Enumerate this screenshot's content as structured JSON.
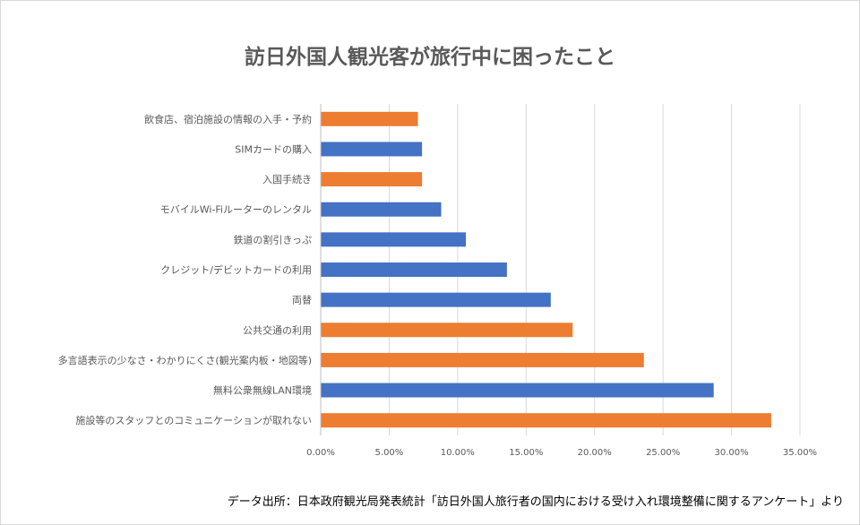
{
  "chart_data": {
    "type": "bar",
    "orientation": "horizontal",
    "title": "訪日外国人観光客が旅行中に困ったこと",
    "categories": [
      "飲食店、宿泊施設の情報の入手・予約",
      "SIMカードの購入",
      "入国手続き",
      "モバイルWi-Fiルーターのレンタル",
      "鉄道の割引きっぷ",
      "クレジット/デビットカードの利用",
      "両替",
      "公共交通の利用",
      "多言語表示の少なさ・わかりにくさ(観光案内板・地図等)",
      "無料公衆無線LAN環境",
      "施設等のスタッフとのコミュニケーションが取れない"
    ],
    "values": [
      7.1,
      7.4,
      7.4,
      8.8,
      10.6,
      13.6,
      16.8,
      18.4,
      23.6,
      28.7,
      32.9
    ],
    "bar_colors": [
      "#ed7d31",
      "#4472c4",
      "#ed7d31",
      "#4472c4",
      "#4472c4",
      "#4472c4",
      "#4472c4",
      "#ed7d31",
      "#ed7d31",
      "#4472c4",
      "#ed7d31"
    ],
    "xlim": [
      0,
      35
    ],
    "xticks": [
      0,
      5,
      10,
      15,
      20,
      25,
      30,
      35
    ],
    "xtick_labels": [
      "0.00%",
      "5.00%",
      "10.00%",
      "15.00%",
      "20.00%",
      "25.00%",
      "30.00%",
      "35.00%"
    ],
    "grid": true,
    "xlabel": "",
    "ylabel": ""
  },
  "source_note": "データ出所：日本政府観光局発表統計「訪日外国人旅行者の国内における受け入れ環境整備に関するアンケート」より"
}
